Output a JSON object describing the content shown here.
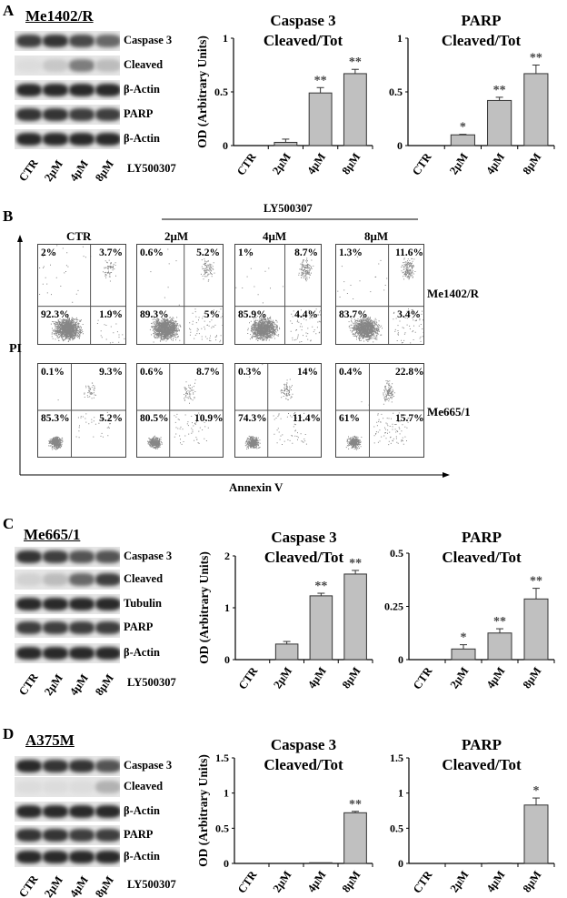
{
  "panels": {
    "A": "A",
    "B": "B",
    "C": "C",
    "D": "D"
  },
  "lane_labels": [
    "CTR",
    "2μM",
    "4μM",
    "8μM"
  ],
  "treatment": "LY500307",
  "blots": {
    "A": {
      "cell_line": "Me1402/R",
      "rows": [
        "Caspase 3",
        "Cleaved",
        "β-Actin",
        "PARP",
        "β-Actin"
      ]
    },
    "C": {
      "cell_line": "Me665/1",
      "rows": [
        "Caspase 3",
        "Cleaved",
        "Tubulin",
        "PARP",
        "β-Actin"
      ]
    },
    "D": {
      "cell_line": "A375M",
      "rows": [
        "Caspase 3",
        "Cleaved",
        "β-Actin",
        "PARP",
        "β-Actin"
      ]
    }
  },
  "flow": {
    "treatment": "LY500307",
    "columns": [
      "CTR",
      "2μM",
      "4μM",
      "8μM"
    ],
    "y_axis": "PI",
    "x_axis": "Annexin V",
    "rows": [
      {
        "cell_line": "Me1402/R",
        "quadrants": [
          [
            "2%",
            "3.7%",
            "92.3%",
            "1.9%"
          ],
          [
            "0.6%",
            "5.2%",
            "89.3%",
            "5%"
          ],
          [
            "1%",
            "8.7%",
            "85.9%",
            "4.4%"
          ],
          [
            "1.3%",
            "11.6%",
            "83.7%",
            "3.4%"
          ]
        ]
      },
      {
        "cell_line": "Me665/1",
        "quadrants": [
          [
            "0.1%",
            "9.3%",
            "85.3%",
            "5.2%"
          ],
          [
            "0.6%",
            "8.7%",
            "80.5%",
            "10.9%"
          ],
          [
            "0.3%",
            "14%",
            "74.3%",
            "11.4%"
          ],
          [
            "0.4%",
            "22.8%",
            "61%",
            "15.7%"
          ]
        ]
      }
    ]
  },
  "chart_data": [
    {
      "panel": "A",
      "type": "bar",
      "title": "Caspase 3 Cleaved/Tot",
      "title_lines": [
        "Caspase 3",
        "Cleaved/Tot"
      ],
      "ylabel": "OD (Arbitrary Units)",
      "categories": [
        "CTR",
        "2μM",
        "4μM",
        "8μM"
      ],
      "values": [
        0,
        0.03,
        0.49,
        0.67
      ],
      "errors": [
        0,
        0.03,
        0.05,
        0.04
      ],
      "significance": [
        "",
        "",
        "**",
        "**"
      ],
      "ylim": [
        0,
        1
      ],
      "yticks": [
        "0",
        "0.5",
        "1"
      ],
      "color": "#c0c0c0"
    },
    {
      "panel": "A",
      "type": "bar",
      "title": "PARP Cleaved/Tot",
      "title_lines": [
        "PARP",
        "Cleaved/Tot"
      ],
      "ylabel": "",
      "categories": [
        "CTR",
        "2μM",
        "4μM",
        "8μM"
      ],
      "values": [
        0,
        0.1,
        0.42,
        0.67
      ],
      "errors": [
        0,
        0.005,
        0.03,
        0.08
      ],
      "significance": [
        "",
        "*",
        "**",
        "**"
      ],
      "ylim": [
        0,
        1
      ],
      "yticks": [
        "0",
        "0.5",
        "1"
      ],
      "color": "#c0c0c0"
    },
    {
      "panel": "C",
      "type": "bar",
      "title": "Caspase 3 Cleaved/Tot",
      "title_lines": [
        "Caspase 3",
        "Cleaved/Tot"
      ],
      "ylabel": "OD (Arbitrary Units)",
      "categories": [
        "CTR",
        "2μM",
        "4μM",
        "8μM"
      ],
      "values": [
        0,
        0.3,
        1.23,
        1.65
      ],
      "errors": [
        0,
        0.05,
        0.05,
        0.07
      ],
      "significance": [
        "",
        "",
        "**",
        "**"
      ],
      "ylim": [
        0,
        2
      ],
      "yticks": [
        "0",
        "1",
        "2"
      ],
      "color": "#c0c0c0"
    },
    {
      "panel": "C",
      "type": "bar",
      "title": "PARP Cleaved/Tot",
      "title_lines": [
        "PARP",
        "Cleaved/Tot"
      ],
      "ylabel": "",
      "categories": [
        "CTR",
        "2μM",
        "4μM",
        "8μM"
      ],
      "values": [
        0,
        0.05,
        0.125,
        0.285
      ],
      "errors": [
        0,
        0.02,
        0.02,
        0.05
      ],
      "significance": [
        "",
        "*",
        "**",
        "**"
      ],
      "ylim": [
        0,
        0.5
      ],
      "yticks": [
        "0",
        "0.25",
        "0.5"
      ],
      "color": "#c0c0c0"
    },
    {
      "panel": "D",
      "type": "bar",
      "title": "Caspase 3 Cleaved/Tot",
      "title_lines": [
        "Caspase 3",
        "Cleaved/Tot"
      ],
      "ylabel": "OD (Arbitrary Units)",
      "categories": [
        "CTR",
        "2μM",
        "4μM",
        "8μM"
      ],
      "values": [
        0,
        0,
        0.01,
        0.72
      ],
      "errors": [
        0,
        0,
        0,
        0.02
      ],
      "significance": [
        "",
        "",
        "",
        "**"
      ],
      "ylim": [
        0,
        1.5
      ],
      "yticks": [
        "0",
        "0.5",
        "1",
        "1.5"
      ],
      "color": "#c0c0c0"
    },
    {
      "panel": "D",
      "type": "bar",
      "title": "PARP Cleaved/Tot",
      "title_lines": [
        "PARP",
        "Cleaved/Tot"
      ],
      "ylabel": "",
      "categories": [
        "CTR",
        "2μM",
        "4μM",
        "8μM"
      ],
      "values": [
        0,
        0,
        0.005,
        0.83
      ],
      "errors": [
        0,
        0,
        0,
        0.1
      ],
      "significance": [
        "",
        "",
        "",
        "*"
      ],
      "ylim": [
        0,
        1.5
      ],
      "yticks": [
        "0",
        "0.5",
        "1",
        "1.5"
      ],
      "color": "#c0c0c0"
    }
  ]
}
